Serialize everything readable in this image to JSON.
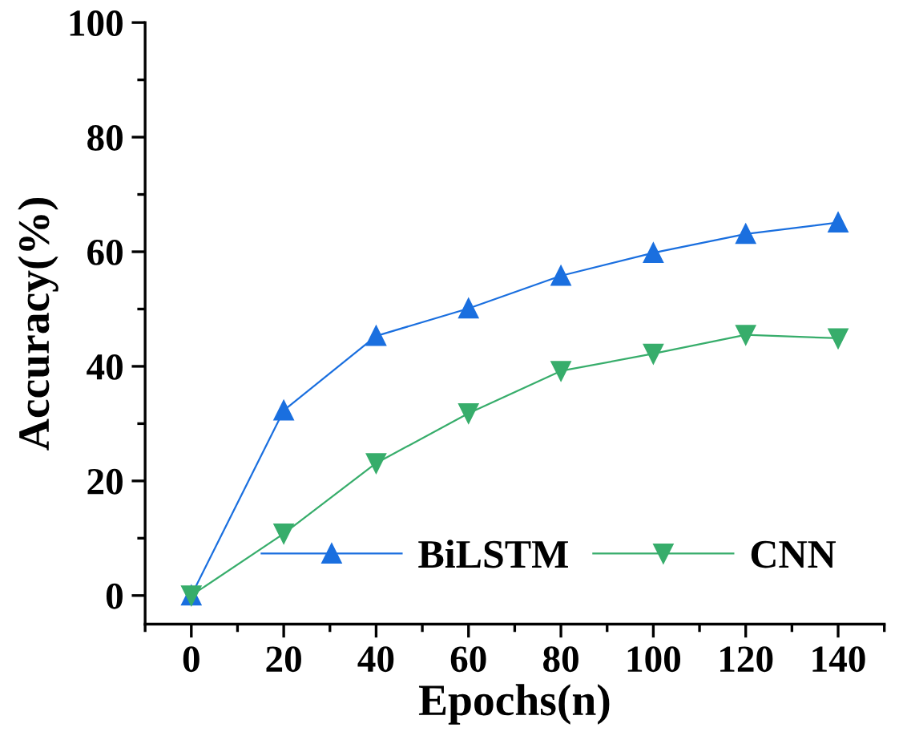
{
  "chart_data": {
    "type": "line",
    "xlabel": "Epochs(n)",
    "ylabel": "Accuracy(%)",
    "x": [
      0,
      20,
      40,
      60,
      80,
      100,
      120,
      140
    ],
    "series": [
      {
        "name": "BiLSTM",
        "color": "#1a6fdf",
        "marker": "triangle",
        "values": [
          0,
          32.3,
          45.3,
          50.1,
          55.8,
          59.8,
          63.1,
          65.1
        ]
      },
      {
        "name": "CNN",
        "color": "#37ad6b",
        "marker": "triangle_down",
        "values": [
          0,
          10.8,
          23.1,
          31.8,
          39.2,
          42.2,
          45.5,
          44.9
        ]
      }
    ],
    "xlim": [
      -10,
      150
    ],
    "xticks": [
      0,
      20,
      40,
      60,
      80,
      100,
      120,
      140
    ],
    "ylim": [
      -5,
      100
    ],
    "yticks": [
      0,
      20,
      40,
      60,
      80,
      100
    ],
    "grid": false,
    "legend": "bottom right",
    "line_style": "solid"
  }
}
